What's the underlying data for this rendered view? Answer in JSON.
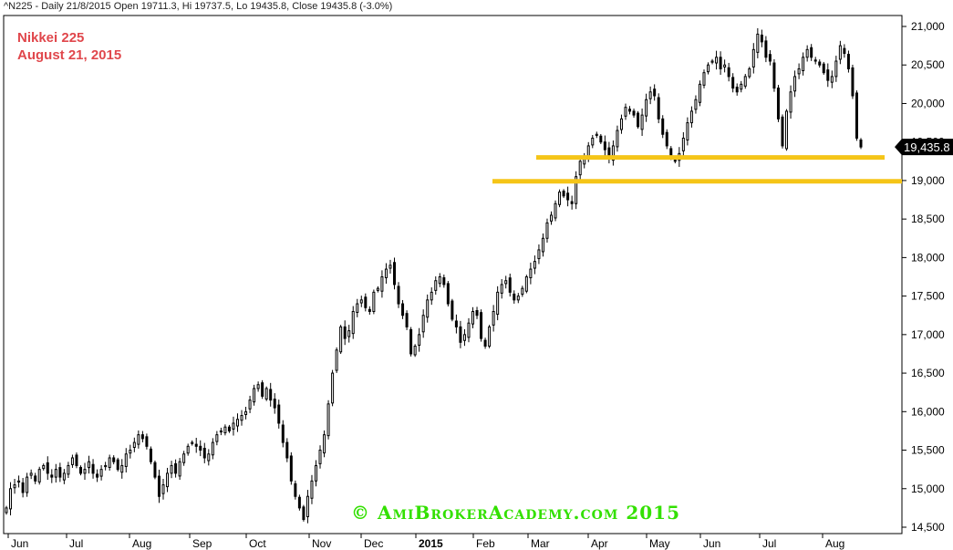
{
  "header": {
    "text": "^N225 - Daily 21/8/2015 Open 19711.3, Hi 19737.5, Lo 19435.8, Close 19435.8 (-3.0%)"
  },
  "annotation": {
    "line1": "Nikkei 225",
    "line2": "August 21, 2015"
  },
  "watermark": "© AmiBrokerAcademy.com 2015",
  "price_tag": "19,435.8",
  "colors": {
    "candle": "#000000",
    "support": "#f5c518",
    "annotation": "#e0474c",
    "watermark": "#33e000",
    "price_tag_bg": "#000000",
    "price_tag_fg": "#ffffff"
  },
  "chart_data": {
    "type": "candlestick",
    "title": "^N225 - Daily 21/8/2015 Open 19711.3, Hi 19737.5, Lo 19435.8, Close 19435.8 (-3.0%)",
    "x_labels": [
      "Jun",
      "Jul",
      "Aug",
      "Sep",
      "Oct",
      "Nov",
      "Dec",
      "2015",
      "Feb",
      "Mar",
      "Apr",
      "May",
      "Jun",
      "Jul",
      "Aug"
    ],
    "y_ticks": [
      14500,
      15000,
      15500,
      16000,
      16500,
      17000,
      17500,
      18000,
      18500,
      19000,
      19500,
      20000,
      20500,
      21000
    ],
    "y_tick_labels": [
      "14,500",
      "15,000",
      "15,500",
      "16,000",
      "16,500",
      "17,000",
      "17,500",
      "18,000",
      "18,500",
      "19,000",
      "19,500",
      "20,000",
      "20,500",
      "21,000"
    ],
    "ylim": [
      14400,
      21200
    ],
    "series_close": [
      14750,
      15000,
      15050,
      15100,
      14950,
      15150,
      15200,
      15100,
      15250,
      15300,
      15200,
      15150,
      15250,
      15150,
      15200,
      15300,
      15400,
      15300,
      15200,
      15250,
      15350,
      15200,
      15150,
      15250,
      15300,
      15400,
      15350,
      15250,
      15300,
      15450,
      15500,
      15600,
      15700,
      15650,
      15550,
      15350,
      15150,
      14900,
      15050,
      15200,
      15300,
      15200,
      15350,
      15450,
      15550,
      15600,
      15550,
      15500,
      15400,
      15450,
      15600,
      15700,
      15750,
      15800,
      15750,
      15850,
      15900,
      15950,
      16000,
      16150,
      16300,
      16350,
      16200,
      16300,
      16150,
      16050,
      15850,
      15600,
      15400,
      15100,
      14900,
      14750,
      14600,
      14900,
      15100,
      15300,
      15500,
      15700,
      16100,
      16500,
      16800,
      17100,
      16950,
      17050,
      17300,
      17400,
      17450,
      17350,
      17300,
      17550,
      17600,
      17750,
      17850,
      17900,
      17650,
      17400,
      17250,
      17100,
      16750,
      16850,
      17000,
      17250,
      17450,
      17550,
      17700,
      17750,
      17650,
      17400,
      17200,
      17100,
      16900,
      17000,
      17150,
      17300,
      17250,
      16950,
      16850,
      17100,
      17300,
      17550,
      17650,
      17700,
      17550,
      17450,
      17500,
      17600,
      17750,
      17850,
      17950,
      18100,
      18250,
      18450,
      18550,
      18700,
      18850,
      18800,
      18750,
      18700,
      19050,
      19250,
      19300,
      19450,
      19550,
      19600,
      19500,
      19400,
      19300,
      19450,
      19650,
      19800,
      19950,
      19900,
      19850,
      19700,
      19850,
      20050,
      20150,
      20100,
      19800,
      19600,
      19450,
      19300,
      19250,
      19350,
      19550,
      19750,
      19900,
      20050,
      20250,
      20400,
      20500,
      20550,
      20600,
      20450,
      20500,
      20350,
      20200,
      20150,
      20250,
      20350,
      20450,
      20700,
      20900,
      20800,
      20600,
      20550,
      20200,
      19800,
      19450,
      19900,
      20150,
      20350,
      20450,
      20600,
      20700,
      20600,
      20550,
      20500,
      20400,
      20300,
      20350,
      20550,
      20750,
      20650,
      20450,
      20100,
      19550,
      19435.8
    ],
    "support_levels": [
      19300,
      18990
    ],
    "last_close": 19435.8,
    "grid": false,
    "y_axis": "right"
  }
}
